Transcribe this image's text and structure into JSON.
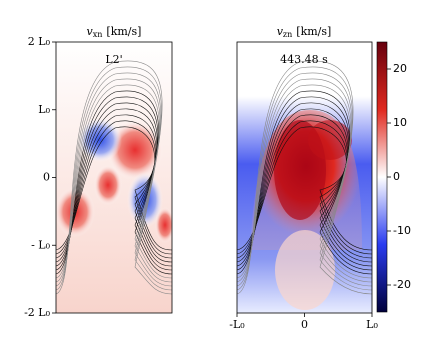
{
  "panels": [
    {
      "title": {
        "symbol": "v",
        "subscript": "xn",
        "unit": "[km/s]"
      },
      "annotation": "L2'"
    },
    {
      "title": {
        "symbol": "v",
        "subscript": "zn",
        "unit": "[km/s]"
      },
      "annotation": "443.48 s"
    }
  ],
  "y_axis": {
    "lim": [
      -2,
      2
    ],
    "ticks": [
      {
        "value": 2,
        "label": "2 L₀"
      },
      {
        "value": 1,
        "label": "L₀"
      },
      0,
      {
        "value": -1,
        "label": "- L₀"
      },
      {
        "value": -2,
        "label": "-2 L₀"
      }
    ]
  },
  "x_axis": {
    "lim": [
      -1,
      1
    ],
    "ticks": [
      {
        "value": -1,
        "label": "-L₀"
      },
      0,
      {
        "value": 1,
        "label": "L₀"
      }
    ]
  },
  "colorbar": {
    "lim": [
      -25,
      25
    ],
    "ticks": [
      -20,
      -10,
      0,
      10,
      20
    ]
  }
}
